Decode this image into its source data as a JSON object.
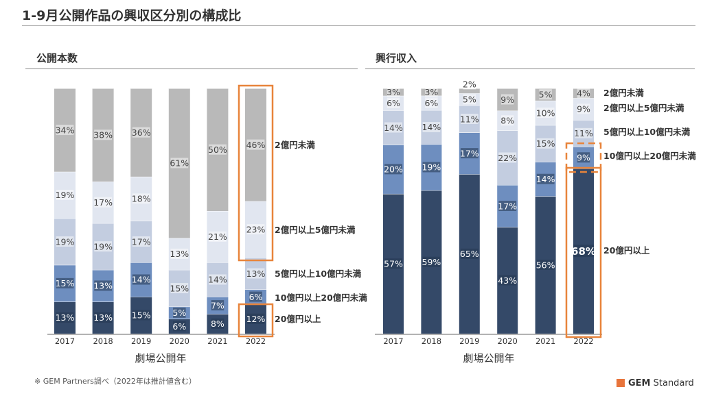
{
  "title": "1-9月公開作品の興収区分別の構成比",
  "footnote": "※ GEM Partners調べ（2022年は推計値含む）",
  "logo": {
    "bold": "GEM",
    "rest": " Standard"
  },
  "colors": {
    "under2": "#b9b9b9",
    "2to5": "#e1e6f0",
    "5to10": "#c3cde0",
    "10to20": "#6e8ebf",
    "over20": "#344968",
    "highlight": "#e8843b"
  },
  "chart_data": [
    {
      "type": "bar",
      "stacked": true,
      "title": "公開本数",
      "xlabel": "劇場公開年",
      "categories": [
        "2017",
        "2018",
        "2019",
        "2020",
        "2021",
        "2022"
      ],
      "series": [
        {
          "name": "20億円以上",
          "key": "over20",
          "values": [
            13,
            13,
            15,
            6,
            8,
            12
          ],
          "labels": [
            "13%",
            "13%",
            "15%",
            "6%",
            "8%",
            "12%"
          ]
        },
        {
          "name": "10億円以上20億円未満",
          "key": "10to20",
          "values": [
            15,
            13,
            14,
            5,
            7,
            6
          ],
          "labels": [
            "15%",
            "13%",
            "14%",
            "5%",
            "7%",
            "6%"
          ]
        },
        {
          "name": "5億円以上10億円未満",
          "key": "5to10",
          "values": [
            19,
            19,
            17,
            15,
            14,
            13
          ],
          "labels": [
            "19%",
            "19%",
            "17%",
            "15%",
            "14%",
            "13%"
          ]
        },
        {
          "name": "2億円以上5億円未満",
          "key": "2to5",
          "values": [
            19,
            17,
            18,
            13,
            21,
            23
          ],
          "labels": [
            "19%",
            "17%",
            "18%",
            "13%",
            "21%",
            "23%"
          ]
        },
        {
          "name": "2億円未満",
          "key": "under2",
          "values": [
            34,
            38,
            36,
            61,
            50,
            46
          ],
          "labels": [
            "34%",
            "38%",
            "36%",
            "61%",
            "50%",
            "46%"
          ]
        }
      ],
      "highlight": {
        "category": "2022",
        "groups": [
          [
            "2億円未満",
            "2億円以上5億円未満"
          ],
          [
            "20億円以上"
          ]
        ]
      }
    },
    {
      "type": "bar",
      "stacked": true,
      "title": "興行収入",
      "xlabel": "劇場公開年",
      "categories": [
        "2017",
        "2018",
        "2019",
        "2020",
        "2021",
        "2022"
      ],
      "series": [
        {
          "name": "20億円以上",
          "key": "over20",
          "values": [
            57,
            59,
            65,
            43,
            56,
            68
          ],
          "labels": [
            "57%",
            "59%",
            "65%",
            "43%",
            "56%",
            "68%"
          ]
        },
        {
          "name": "10億円以上20億円未満",
          "key": "10to20",
          "values": [
            20,
            19,
            17,
            17,
            14,
            9
          ],
          "labels": [
            "20%",
            "19%",
            "17%",
            "17%",
            "14%",
            "9%"
          ]
        },
        {
          "name": "5億円以上10億円未満",
          "key": "5to10",
          "values": [
            14,
            14,
            11,
            22,
            15,
            11
          ],
          "labels": [
            "14%",
            "14%",
            "11%",
            "22%",
            "15%",
            "11%"
          ]
        },
        {
          "name": "2億円以上5億円未満",
          "key": "2to5",
          "values": [
            6,
            6,
            5,
            8,
            10,
            9
          ],
          "labels": [
            "6%",
            "6%",
            "5%",
            "8%",
            "10%",
            "9%"
          ]
        },
        {
          "name": "2億円未満",
          "key": "under2",
          "values": [
            3,
            3,
            2,
            9,
            5,
            4
          ],
          "labels": [
            "3%",
            "3%",
            "2%",
            "9%",
            "5%",
            "4%"
          ]
        }
      ],
      "highlight": {
        "category": "2022",
        "groups": [
          [
            "10億円以上20億円未満"
          ],
          [
            "20億円以上"
          ]
        ]
      }
    }
  ]
}
